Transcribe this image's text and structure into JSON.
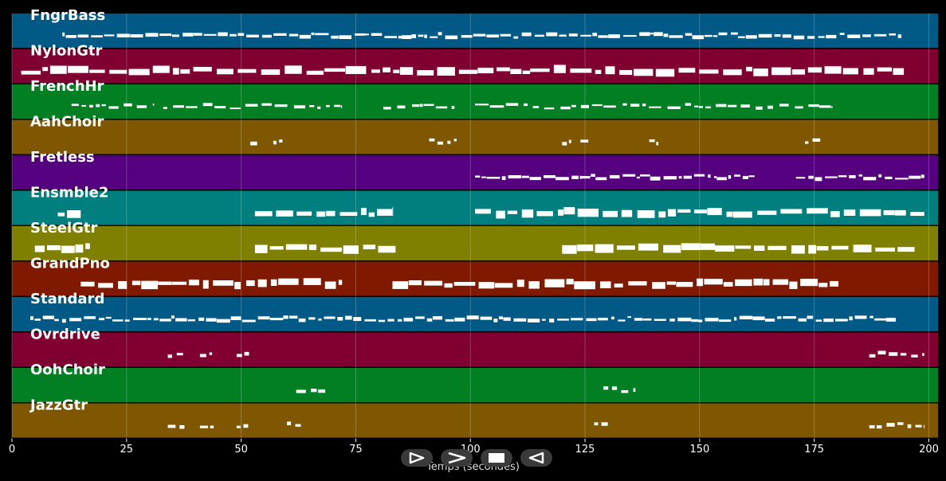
{
  "chart_data": {
    "type": "piano-roll",
    "xlabel": "Temps (secondes)",
    "xlim": [
      0,
      202
    ],
    "x_ticks": [
      0,
      25,
      50,
      75,
      100,
      125,
      150,
      175,
      200
    ],
    "grid": true,
    "tracks": [
      {
        "name": "FngrBass",
        "color": "#015a86",
        "density": "dense",
        "segments": [
          [
            11,
            194
          ]
        ]
      },
      {
        "name": "NylonGtr",
        "color": "#7f0030",
        "density": "block",
        "segments": [
          [
            2,
            195
          ]
        ]
      },
      {
        "name": "FrenchHr",
        "color": "#017f22",
        "density": "thin",
        "segments": [
          [
            13,
            31
          ],
          [
            33,
            72
          ],
          [
            81,
            97
          ],
          [
            101,
            179
          ]
        ]
      },
      {
        "name": "AahChoir",
        "color": "#7f5700",
        "density": "sparse",
        "segments": [
          [
            52,
            54
          ],
          [
            57,
            59
          ],
          [
            91,
            97
          ],
          [
            120,
            122
          ],
          [
            124,
            126
          ],
          [
            139,
            141
          ],
          [
            173,
            177
          ]
        ]
      },
      {
        "name": "Fretless",
        "color": "#55007f",
        "density": "dense",
        "segments": [
          [
            101,
            162
          ],
          [
            171,
            199
          ]
        ]
      },
      {
        "name": "Ensmble2",
        "color": "#007f7f",
        "density": "block",
        "segments": [
          [
            10,
            15
          ],
          [
            53,
            83
          ],
          [
            101,
            199
          ]
        ]
      },
      {
        "name": "SteelGtr",
        "color": "#7f7f00",
        "density": "block",
        "segments": [
          [
            5,
            17
          ],
          [
            53,
            84
          ],
          [
            120,
            197
          ]
        ]
      },
      {
        "name": "GrandPno",
        "color": "#7f1a00",
        "density": "block",
        "segments": [
          [
            15,
            72
          ],
          [
            83,
            181
          ]
        ]
      },
      {
        "name": "Standard",
        "color": "#015a86",
        "density": "dense",
        "segments": [
          [
            4,
            193
          ]
        ]
      },
      {
        "name": "Ovrdrive",
        "color": "#7f0030",
        "density": "sparse",
        "segments": [
          [
            34,
            38
          ],
          [
            41,
            44
          ],
          [
            49,
            52
          ],
          [
            187,
            199
          ]
        ]
      },
      {
        "name": "OohChoir",
        "color": "#017f22",
        "density": "sparse",
        "segments": [
          [
            62,
            69
          ],
          [
            129,
            136
          ]
        ]
      },
      {
        "name": "JazzGtr",
        "color": "#7f5700",
        "density": "sparse",
        "segments": [
          [
            34,
            38
          ],
          [
            41,
            44
          ],
          [
            49,
            52
          ],
          [
            60,
            63
          ],
          [
            127,
            130
          ],
          [
            187,
            199
          ]
        ]
      }
    ]
  },
  "controls": [
    {
      "name": "play",
      "icon": "play-icon"
    },
    {
      "name": "forward",
      "icon": "chevron-right-icon"
    },
    {
      "name": "stop",
      "icon": "stop-icon"
    },
    {
      "name": "rewind",
      "icon": "rewind-icon"
    }
  ]
}
